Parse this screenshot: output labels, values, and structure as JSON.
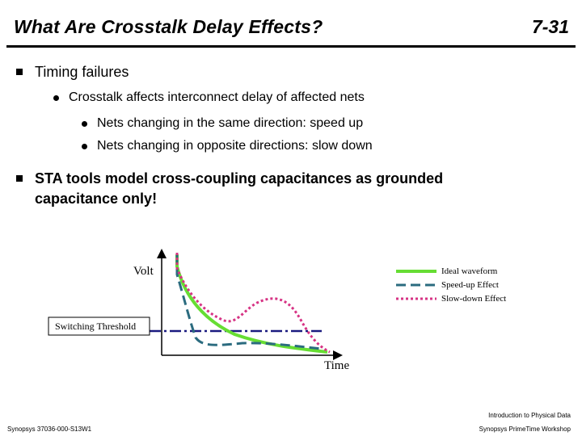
{
  "slide": {
    "title": "What Are Crosstalk Delay Effects?",
    "number": "7-31"
  },
  "bullets": {
    "timing": "Timing failures",
    "crosstalk": "Crosstalk affects interconnect delay of affected nets",
    "same_dir": "Nets changing in the same direction: speed up",
    "opposite_dir": "Nets changing in opposite directions: slow down",
    "sta_line1": "STA tools model cross-coupling capacitances as grounded",
    "sta_line2": "capacitance only!"
  },
  "diagram": {
    "y_label": "Volt",
    "x_label": "Time",
    "threshold_label": "Switching Threshold",
    "legend": [
      {
        "label": "Ideal waveform",
        "color": "#66dd33"
      },
      {
        "label": "Speed-up Effect",
        "color": "#2b6b7f"
      },
      {
        "label": "Slow-down Effect",
        "color": "#d63384"
      }
    ],
    "threshold_color": "#1a1a80"
  },
  "footer": {
    "left": "Synopsys 37036-000-S13W1",
    "right_top": "Introduction to Physical Data",
    "right_bottom": "Synopsys PrimeTime Workshop"
  }
}
